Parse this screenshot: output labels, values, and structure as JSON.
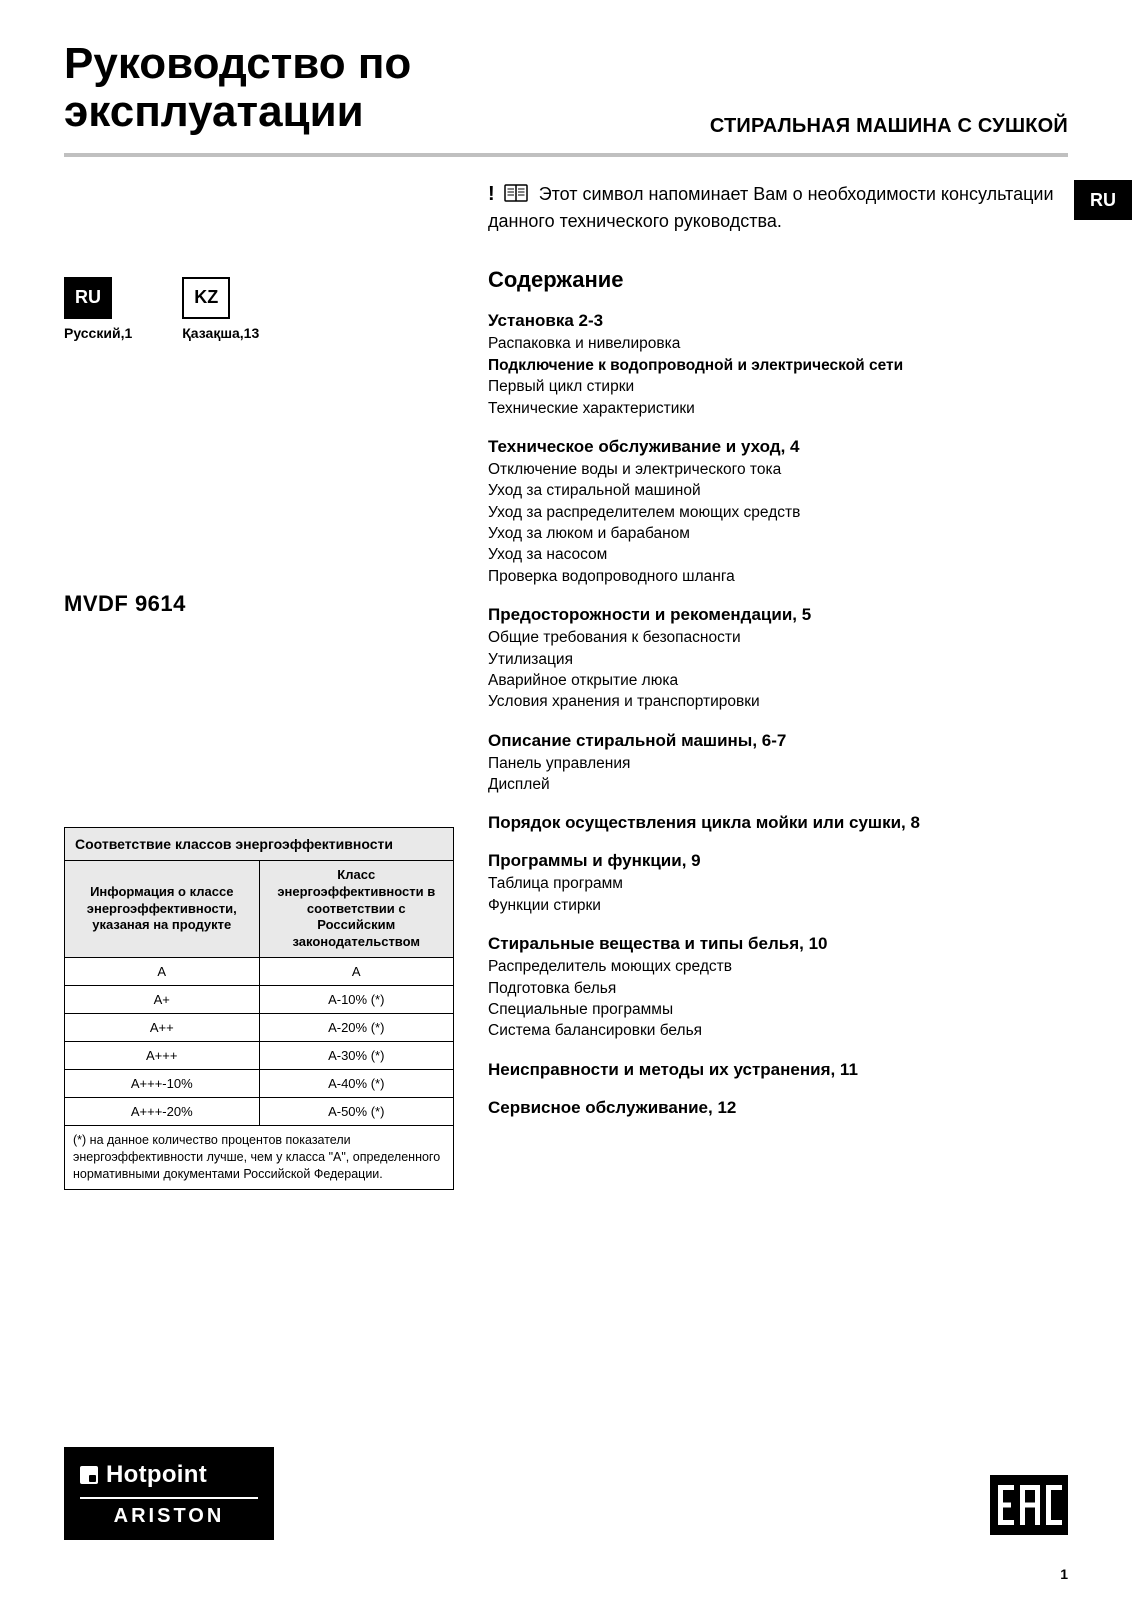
{
  "title_line1": "Руководство по",
  "title_line2": "эксплуатации",
  "subtitle": "СТИРАЛЬНАЯ МАШИНА С СУШКОЙ",
  "lang_tab": "RU",
  "notice_bang": "!",
  "notice_text": "Этот символ напоминает Вам о необходимости консультации данного технического руководства.",
  "languages": [
    {
      "code": "RU",
      "label": "Русский,1",
      "filled": true
    },
    {
      "code": "KZ",
      "label": "Қазақша,13",
      "filled": false
    }
  ],
  "model": "MVDF 9614",
  "etable": {
    "title": "Соответствие классов энергоэффективности",
    "col1": "Информация о классе энергоэффективности, указаная на продукте",
    "col2": "Класс энергоэффективности в соответствии с Российским законодательством",
    "rows": [
      [
        "A",
        "A"
      ],
      [
        "A+",
        "A-10% (*)"
      ],
      [
        "A++",
        "A-20% (*)"
      ],
      [
        "A+++",
        "A-30% (*)"
      ],
      [
        "A+++-10%",
        "A-40% (*)"
      ],
      [
        "A+++-20%",
        "A-50% (*)"
      ]
    ],
    "footnote": "(*) на данное количество процентов показатели энергоэффективности лучше, чем у класса \"А\", определенного нормативными документами Российской Федерации."
  },
  "toc_heading": "Содержание",
  "sections": [
    {
      "head": "Установка 2-3",
      "items": [
        {
          "t": "Распаковка и нивелировка",
          "bold": false
        },
        {
          "t": "Подключение к водопроводной и электрической сети",
          "bold": true
        },
        {
          "t": "Первый цикл стирки",
          "bold": false
        },
        {
          "t": "Технические характеристики",
          "bold": false
        }
      ]
    },
    {
      "head": "Техническое обслуживание и уход, 4",
      "items": [
        {
          "t": "Отключение воды и электрического тока",
          "bold": false
        },
        {
          "t": "Уход за стиральной машиной",
          "bold": false
        },
        {
          "t": "Уход за распределителем моющих средств",
          "bold": false
        },
        {
          "t": "Уход за люком и барабаном",
          "bold": false
        },
        {
          "t": "Уход за насосом",
          "bold": false
        },
        {
          "t": "Проверка водопроводного шланга",
          "bold": false
        }
      ]
    },
    {
      "head": "Предосторожности и рекомендации, 5",
      "items": [
        {
          "t": "Общие требования к безопасности",
          "bold": false
        },
        {
          "t": "Утилизация",
          "bold": false
        },
        {
          "t": "Аварийное открытие люка",
          "bold": false
        },
        {
          "t": "Условия хранения и транспортировки",
          "bold": false
        }
      ]
    },
    {
      "head": "Описание стиральной машины, 6-7",
      "items": [
        {
          "t": "Панель управления",
          "bold": false
        },
        {
          "t": "Дисплей",
          "bold": false
        }
      ]
    },
    {
      "head": "Порядок осуществления цикла мойки или сушки, 8",
      "items": []
    },
    {
      "head": "Программы и функции, 9",
      "items": [
        {
          "t": "Таблица программ",
          "bold": false
        },
        {
          "t": "Функции стирки",
          "bold": false
        }
      ]
    },
    {
      "head": "Стиральные вещества и типы белья, 10",
      "items": [
        {
          "t": "Распределитель моющих средств",
          "bold": false
        },
        {
          "t": "Подготовка белья",
          "bold": false
        },
        {
          "t": "Специальные программы",
          "bold": false
        },
        {
          "t": "Система балансировки белья",
          "bold": false
        }
      ]
    },
    {
      "head": "Неисправности и методы их устранения, 11",
      "items": []
    },
    {
      "head": "Сервисное обслуживание, 12",
      "items": []
    }
  ],
  "brand_top": "Hotpoint",
  "brand_bottom": "ARISTON",
  "page_number": "1",
  "colors": {
    "divider": "#c0c0c0",
    "table_header_bg": "#e9e9e9"
  }
}
